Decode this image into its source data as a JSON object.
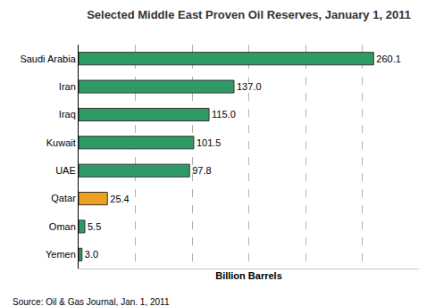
{
  "chart_data": {
    "type": "bar",
    "orientation": "horizontal",
    "title": "Selected Middle East Proven Oil Reserves, January 1, 2011",
    "x_label": "Billion Barrels",
    "annotations": [
      "Source: Oil & Gas Journal, Jan. 1, 2011"
    ],
    "categories": [
      "Saudi Arabia",
      "Iran",
      "Iraq",
      "Kuwait",
      "UAE",
      "Qatar",
      "Oman",
      "Yemen"
    ],
    "values": [
      260.1,
      137.0,
      115.0,
      101.5,
      97.8,
      25.4,
      5.5,
      3.0
    ],
    "value_labels": [
      "260.1",
      "137.0",
      "115.0",
      "101.5",
      "97.8",
      "25.4",
      "5.5",
      "3.0"
    ],
    "colors": [
      "#2e9a66",
      "#2e9a66",
      "#2e9a66",
      "#2e9a66",
      "#2e9a66",
      "#f0a020",
      "#2e9a66",
      "#2e9a66"
    ],
    "xlim": [
      0,
      300
    ],
    "xticks": [
      0,
      50,
      100,
      150,
      200,
      250,
      300
    ],
    "grid": true,
    "data_labels": true,
    "tick_labels": "y"
  }
}
